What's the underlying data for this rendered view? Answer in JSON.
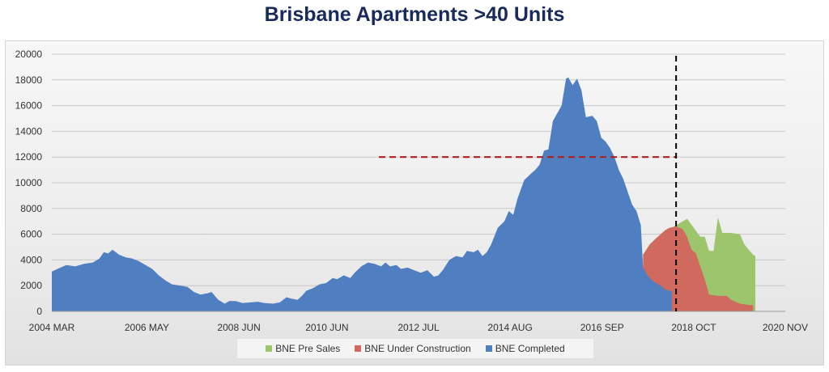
{
  "chart_data": {
    "type": "area",
    "title": "Brisbane Apartments >40 Units",
    "ylim": [
      0,
      20000
    ],
    "yticks": [
      0,
      2000,
      4000,
      6000,
      8000,
      10000,
      12000,
      14000,
      16000,
      18000,
      20000
    ],
    "xlim": [
      2004.17,
      2020.83
    ],
    "xticks": [
      {
        "x": 2004.17,
        "label": "2004 MAR"
      },
      {
        "x": 2006.33,
        "label": "2006 MAY"
      },
      {
        "x": 2008.42,
        "label": "2008 JUN"
      },
      {
        "x": 2010.42,
        "label": "2010 JUN"
      },
      {
        "x": 2012.5,
        "label": "2012 JUL"
      },
      {
        "x": 2014.58,
        "label": "2014 AUG"
      },
      {
        "x": 2016.67,
        "label": "2016 SEP"
      },
      {
        "x": 2018.75,
        "label": "2018 OCT"
      },
      {
        "x": 2020.83,
        "label": "2020 NOV"
      }
    ],
    "grid": true,
    "legend_position": "bottom",
    "series": [
      {
        "name": "BNE Completed",
        "color": "#4f7fc1",
        "points": [
          [
            2004.17,
            3100
          ],
          [
            2004.3,
            3300
          ],
          [
            2004.5,
            3600
          ],
          [
            2004.7,
            3500
          ],
          [
            2004.9,
            3700
          ],
          [
            2005.1,
            3800
          ],
          [
            2005.25,
            4100
          ],
          [
            2005.35,
            4600
          ],
          [
            2005.45,
            4500
          ],
          [
            2005.55,
            4800
          ],
          [
            2005.7,
            4400
          ],
          [
            2005.85,
            4200
          ],
          [
            2006.0,
            4100
          ],
          [
            2006.15,
            3900
          ],
          [
            2006.3,
            3600
          ],
          [
            2006.45,
            3300
          ],
          [
            2006.6,
            2800
          ],
          [
            2006.75,
            2400
          ],
          [
            2006.9,
            2100
          ],
          [
            2007.1,
            2000
          ],
          [
            2007.25,
            1900
          ],
          [
            2007.4,
            1500
          ],
          [
            2007.55,
            1300
          ],
          [
            2007.7,
            1400
          ],
          [
            2007.8,
            1500
          ],
          [
            2007.95,
            900
          ],
          [
            2008.1,
            600
          ],
          [
            2008.2,
            800
          ],
          [
            2008.35,
            800
          ],
          [
            2008.5,
            650
          ],
          [
            2008.7,
            700
          ],
          [
            2008.85,
            750
          ],
          [
            2009.0,
            650
          ],
          [
            2009.2,
            600
          ],
          [
            2009.35,
            700
          ],
          [
            2009.5,
            1100
          ],
          [
            2009.6,
            1000
          ],
          [
            2009.75,
            900
          ],
          [
            2009.85,
            1200
          ],
          [
            2009.95,
            1600
          ],
          [
            2010.1,
            1800
          ],
          [
            2010.25,
            2100
          ],
          [
            2010.4,
            2200
          ],
          [
            2010.55,
            2600
          ],
          [
            2010.65,
            2500
          ],
          [
            2010.8,
            2800
          ],
          [
            2010.95,
            2600
          ],
          [
            2011.05,
            3000
          ],
          [
            2011.2,
            3500
          ],
          [
            2011.35,
            3800
          ],
          [
            2011.5,
            3700
          ],
          [
            2011.65,
            3500
          ],
          [
            2011.75,
            3800
          ],
          [
            2011.85,
            3500
          ],
          [
            2012.0,
            3600
          ],
          [
            2012.1,
            3300
          ],
          [
            2012.25,
            3400
          ],
          [
            2012.4,
            3200
          ],
          [
            2012.55,
            3000
          ],
          [
            2012.7,
            3200
          ],
          [
            2012.85,
            2700
          ],
          [
            2012.95,
            2800
          ],
          [
            2013.05,
            3200
          ],
          [
            2013.2,
            4000
          ],
          [
            2013.35,
            4300
          ],
          [
            2013.5,
            4200
          ],
          [
            2013.6,
            4700
          ],
          [
            2013.75,
            4600
          ],
          [
            2013.85,
            4800
          ],
          [
            2013.95,
            4300
          ],
          [
            2014.05,
            4600
          ],
          [
            2014.15,
            5200
          ],
          [
            2014.3,
            6500
          ],
          [
            2014.45,
            7000
          ],
          [
            2014.55,
            7800
          ],
          [
            2014.65,
            7500
          ],
          [
            2014.75,
            8800
          ],
          [
            2014.9,
            10200
          ],
          [
            2015.05,
            10700
          ],
          [
            2015.15,
            11000
          ],
          [
            2015.25,
            11400
          ],
          [
            2015.35,
            12500
          ],
          [
            2015.45,
            12600
          ],
          [
            2015.55,
            14800
          ],
          [
            2015.65,
            15400
          ],
          [
            2015.75,
            16000
          ],
          [
            2015.85,
            18100
          ],
          [
            2015.9,
            18200
          ],
          [
            2016.0,
            17600
          ],
          [
            2016.1,
            18100
          ],
          [
            2016.2,
            17200
          ],
          [
            2016.3,
            15100
          ],
          [
            2016.45,
            15200
          ],
          [
            2016.55,
            14800
          ],
          [
            2016.65,
            13500
          ],
          [
            2016.75,
            13200
          ],
          [
            2016.85,
            12700
          ],
          [
            2016.95,
            12000
          ],
          [
            2017.05,
            11000
          ],
          [
            2017.15,
            10300
          ],
          [
            2017.25,
            9300
          ],
          [
            2017.35,
            8300
          ],
          [
            2017.45,
            7800
          ],
          [
            2017.55,
            6700
          ],
          [
            2017.6,
            3400
          ],
          [
            2017.7,
            2800
          ],
          [
            2017.8,
            2400
          ],
          [
            2017.9,
            2200
          ],
          [
            2018.0,
            2000
          ],
          [
            2018.1,
            1700
          ],
          [
            2018.2,
            1600
          ],
          [
            2018.25,
            1600
          ]
        ]
      },
      {
        "name": "BNE Under Construction",
        "color": "#d06a5e",
        "points": [
          [
            2017.6,
            4400
          ],
          [
            2017.75,
            5200
          ],
          [
            2017.9,
            5700
          ],
          [
            2018.0,
            6000
          ],
          [
            2018.1,
            6300
          ],
          [
            2018.2,
            6500
          ],
          [
            2018.35,
            6600
          ],
          [
            2018.5,
            6400
          ],
          [
            2018.6,
            5800
          ],
          [
            2018.7,
            4800
          ],
          [
            2018.8,
            4500
          ],
          [
            2018.9,
            3500
          ],
          [
            2019.0,
            2500
          ],
          [
            2019.1,
            1300
          ],
          [
            2019.3,
            1200
          ],
          [
            2019.5,
            1200
          ],
          [
            2019.6,
            900
          ],
          [
            2019.8,
            600
          ],
          [
            2020.0,
            500
          ],
          [
            2020.1,
            500
          ]
        ]
      },
      {
        "name": "BNE Pre Sales",
        "color": "#9dc56b",
        "points": [
          [
            2018.25,
            6500
          ],
          [
            2018.5,
            7000
          ],
          [
            2018.6,
            7200
          ],
          [
            2018.75,
            6500
          ],
          [
            2018.9,
            5800
          ],
          [
            2019.0,
            5800
          ],
          [
            2019.1,
            4700
          ],
          [
            2019.2,
            4700
          ],
          [
            2019.3,
            7300
          ],
          [
            2019.4,
            6100
          ],
          [
            2019.6,
            6100
          ],
          [
            2019.8,
            6000
          ],
          [
            2019.9,
            5200
          ],
          [
            2020.0,
            4800
          ],
          [
            2020.1,
            4400
          ],
          [
            2020.15,
            4300
          ]
        ]
      }
    ],
    "annotations": {
      "vertical_line_x": 2018.35,
      "horizontal_line": {
        "y": 12000,
        "x_start": 2011.6,
        "x_end": 2018.35
      }
    }
  },
  "legend": [
    {
      "label": "BNE Pre Sales",
      "color": "#9dc56b"
    },
    {
      "label": "BNE Under Construction",
      "color": "#d06a5e"
    },
    {
      "label": "BNE Completed",
      "color": "#4f7fc1"
    }
  ]
}
